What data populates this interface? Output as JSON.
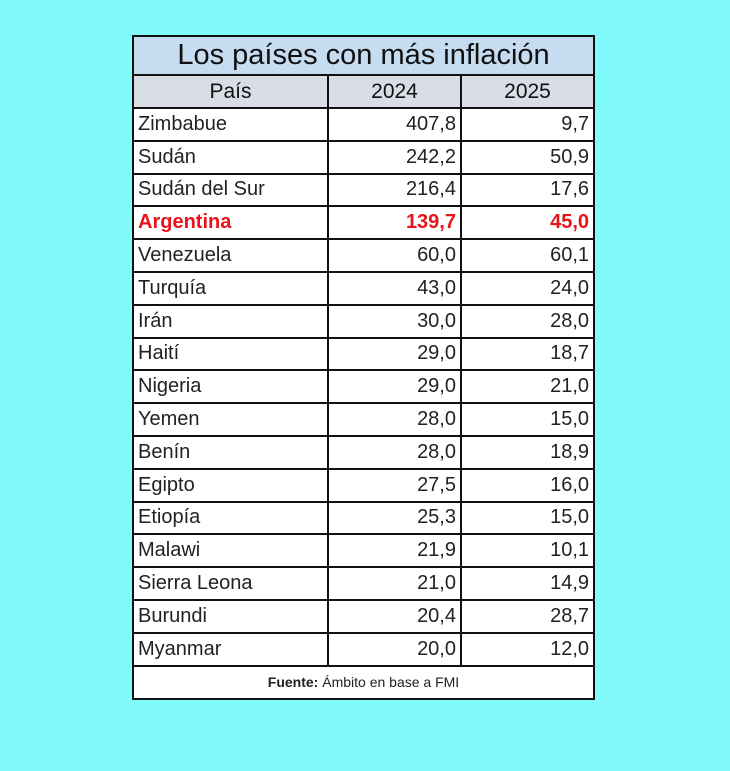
{
  "header": {
    "title": "Los países con más inflación"
  },
  "table": {
    "columns": [
      "País",
      "2024",
      "2025"
    ],
    "rows": [
      [
        "Zimbabue",
        "407,8",
        "9,7"
      ],
      [
        "Sudán",
        "242,2",
        "50,9"
      ],
      [
        "Sudán del Sur",
        "216,4",
        "17,6"
      ],
      [
        "Argentina",
        "139,7",
        "45,0"
      ],
      [
        "Venezuela",
        "60,0",
        "60,1"
      ],
      [
        "Turquía",
        "43,0",
        "24,0"
      ],
      [
        "Irán",
        "30,0",
        "28,0"
      ],
      [
        "Haití",
        "29,0",
        "18,7"
      ],
      [
        "Nigeria",
        "29,0",
        "21,0"
      ],
      [
        "Yemen",
        "28,0",
        "15,0"
      ],
      [
        "Benín",
        "28,0",
        "18,9"
      ],
      [
        "Egipto",
        "27,5",
        "16,0"
      ],
      [
        "Etiopía",
        "25,3",
        "15,0"
      ],
      [
        "Malawi",
        "21,9",
        "10,1"
      ],
      [
        "Sierra Leona",
        "21,0",
        "14,9"
      ],
      [
        "Burundi",
        "20,4",
        "28,7"
      ],
      [
        "Myanmar",
        "20,0",
        "12,0"
      ]
    ]
  },
  "footer": {
    "label": "Fuente:",
    "text": "Ámbito en base a FMI"
  }
}
